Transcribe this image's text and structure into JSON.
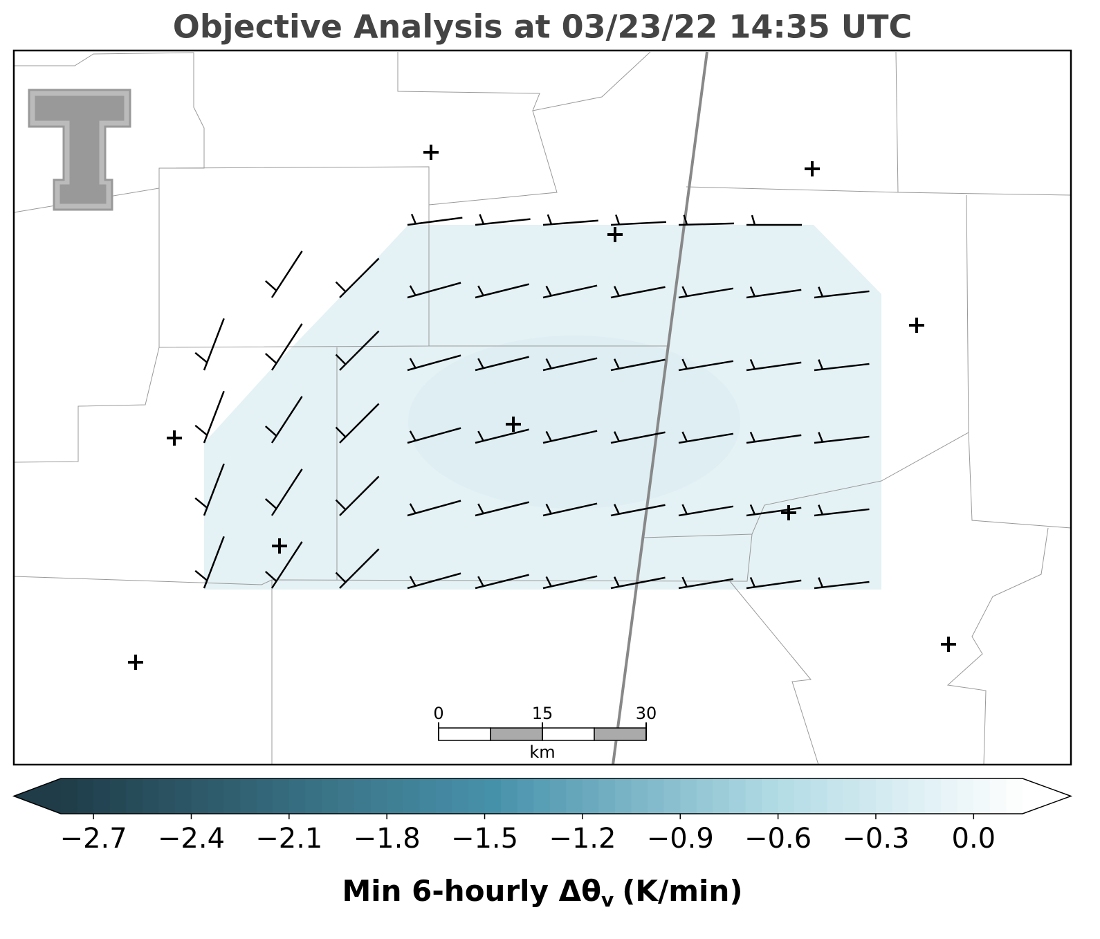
{
  "title": "Objective Analysis at 03/23/22 14:35 UTC",
  "colorbar": {
    "label": {
      "main": "Min 6-hourly Δθ",
      "sub": "v",
      "tail": "(K/min)"
    },
    "range": [
      -2.8,
      0.15
    ],
    "ticks": [
      {
        "value": -2.7,
        "label": "−2.7"
      },
      {
        "value": -2.4,
        "label": "−2.4"
      },
      {
        "value": -2.1,
        "label": "−2.1"
      },
      {
        "value": -1.8,
        "label": "−1.8"
      },
      {
        "value": -1.5,
        "label": "−1.5"
      },
      {
        "value": -1.2,
        "label": "−1.2"
      },
      {
        "value": -0.9,
        "label": "−0.9"
      },
      {
        "value": -0.6,
        "label": "−0.6"
      },
      {
        "value": -0.3,
        "label": "−0.3"
      },
      {
        "value": 0,
        "label": "0.0"
      }
    ]
  },
  "scale_bar": {
    "range": [
      0,
      30
    ],
    "ticks": [
      0,
      15,
      30
    ],
    "unit": "km"
  }
}
